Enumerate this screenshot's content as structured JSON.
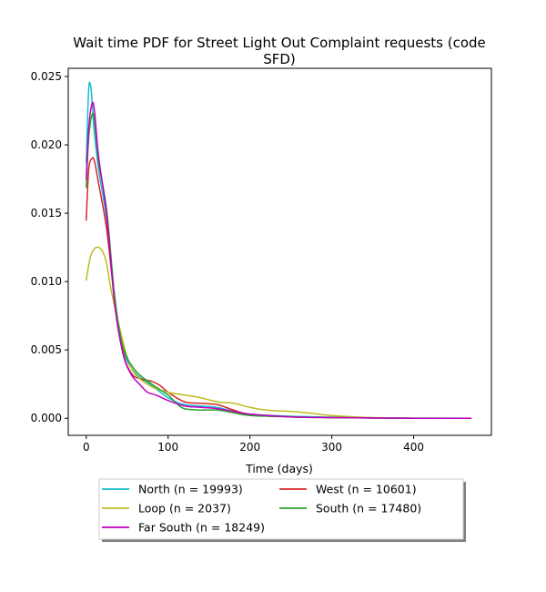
{
  "chart_data": {
    "type": "line",
    "title_line1": "Wait time PDF for Street Light Out Complaint  requests (code",
    "title_line2": "SFD)",
    "xlabel": "Time (days)",
    "ylabel": "",
    "xlim": [
      -22,
      495
    ],
    "ylim": [
      -0.00125,
      0.0256
    ],
    "xticks": [
      0,
      100,
      200,
      300,
      400
    ],
    "xtick_labels": [
      "0",
      "100",
      "200",
      "300",
      "400"
    ],
    "yticks": [
      0.0,
      0.005,
      0.01,
      0.015,
      0.02,
      0.025
    ],
    "ytick_labels": [
      "0.000",
      "0.005",
      "0.010",
      "0.015",
      "0.020",
      "0.025"
    ],
    "grid": false,
    "legend_position": "below",
    "legend_columns": 2,
    "series": [
      {
        "name": "North (n = 19993)",
        "color": "#17becf",
        "x": [
          0,
          3,
          6,
          9,
          15,
          25,
          35,
          45,
          60,
          80,
          100,
          120,
          140,
          160,
          180,
          200,
          250,
          300,
          350,
          400,
          470
        ],
        "y": [
          0.0187,
          0.0241,
          0.024,
          0.0215,
          0.0182,
          0.0145,
          0.0085,
          0.005,
          0.0033,
          0.0024,
          0.0015,
          0.001,
          0.0009,
          0.0008,
          0.0005,
          0.0003,
          0.00015,
          8e-05,
          3e-05,
          1e-05,
          0.0
        ]
      },
      {
        "name": "West (n = 10601)",
        "color": "#d62728",
        "x": [
          0,
          3,
          7,
          10,
          15,
          25,
          35,
          45,
          55,
          65,
          80,
          90,
          100,
          120,
          140,
          160,
          180,
          200,
          250,
          300,
          350,
          400,
          470
        ],
        "y": [
          0.0145,
          0.0182,
          0.019,
          0.0188,
          0.0172,
          0.0138,
          0.0085,
          0.0048,
          0.0033,
          0.0029,
          0.0027,
          0.0024,
          0.0019,
          0.0012,
          0.0011,
          0.001,
          0.0006,
          0.0003,
          0.0001,
          5e-05,
          2e-05,
          0.0,
          0.0
        ]
      },
      {
        "name": "Loop (n = 2037)",
        "color": "#bcbd22",
        "x": [
          0,
          5,
          10,
          15,
          20,
          25,
          30,
          40,
          50,
          60,
          80,
          100,
          120,
          140,
          160,
          180,
          200,
          220,
          250,
          270,
          300,
          350,
          400,
          470
        ],
        "y": [
          0.0101,
          0.0118,
          0.0124,
          0.0125,
          0.0122,
          0.0113,
          0.0095,
          0.0068,
          0.0045,
          0.0032,
          0.0023,
          0.0019,
          0.0017,
          0.0015,
          0.0012,
          0.0011,
          0.0008,
          0.0006,
          0.0005,
          0.0004,
          0.0002,
          5e-05,
          1e-05,
          0.0
        ]
      },
      {
        "name": "South (n = 17480)",
        "color": "#2ca02c",
        "x": [
          0,
          3,
          7,
          10,
          15,
          25,
          35,
          45,
          60,
          80,
          100,
          110,
          120,
          140,
          160,
          180,
          200,
          250,
          300,
          350,
          400,
          470
        ],
        "y": [
          0.0169,
          0.0205,
          0.0222,
          0.0218,
          0.0188,
          0.0152,
          0.0088,
          0.0052,
          0.0035,
          0.0025,
          0.0017,
          0.0011,
          0.0007,
          0.0006,
          0.0006,
          0.0004,
          0.0002,
          0.0001,
          5e-05,
          2e-05,
          0.0,
          0.0
        ]
      },
      {
        "name": "Far South (n = 18249)",
        "color": "#bf00bf",
        "x": [
          0,
          3,
          7,
          10,
          15,
          25,
          35,
          45,
          55,
          65,
          75,
          85,
          100,
          120,
          140,
          160,
          180,
          200,
          250,
          300,
          350,
          400,
          470
        ],
        "y": [
          0.0175,
          0.0212,
          0.023,
          0.0225,
          0.0192,
          0.0148,
          0.0082,
          0.0047,
          0.0032,
          0.0025,
          0.0019,
          0.0017,
          0.0013,
          0.0009,
          0.0008,
          0.0007,
          0.0005,
          0.0003,
          0.0001,
          5e-05,
          2e-05,
          0.0,
          0.0
        ]
      }
    ]
  }
}
